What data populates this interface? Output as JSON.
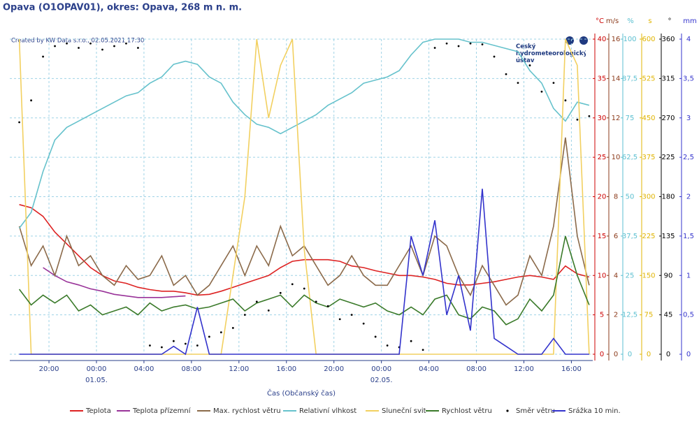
{
  "chart_data": {
    "type": "multi-axis-line",
    "title": "Opava (O1OPAV01), okres: Opava, 268 m n. m.",
    "credit": "Created by KW Data s.r.o., 02.05.2021 17:30",
    "logo_text": "Český hydrometeorologický ústav",
    "xlabel": "Čas (Občanský čas)",
    "xlim": [
      -7.3,
      41.8
    ],
    "xticks": [
      {
        "value": -4,
        "label": "20:00"
      },
      {
        "value": 0,
        "label": "00:00"
      },
      {
        "value": 4,
        "label": "04:00"
      },
      {
        "value": 8,
        "label": "08:00"
      },
      {
        "value": 12,
        "label": "12:00"
      },
      {
        "value": 16,
        "label": "16:00"
      },
      {
        "value": 20,
        "label": "20:00"
      },
      {
        "value": 24,
        "label": "00:00"
      },
      {
        "value": 28,
        "label": "04:00"
      },
      {
        "value": 32,
        "label": "08:00"
      },
      {
        "value": 36,
        "label": "12:00"
      },
      {
        "value": 40,
        "label": "16:00"
      }
    ],
    "xdates": [
      {
        "value": 0,
        "label": "01.05."
      },
      {
        "value": 24,
        "label": "02.05."
      }
    ],
    "grid": true,
    "axes": [
      {
        "unit": "°C",
        "color": "#cc0000",
        "lim": [
          0,
          40
        ],
        "ticks": [
          0,
          5,
          10,
          15,
          20,
          25,
          30,
          35,
          40
        ]
      },
      {
        "unit": "m/s",
        "color": "#8b3a1a",
        "lim": [
          0,
          16
        ],
        "ticks": [
          0,
          2,
          4,
          6,
          8,
          10,
          12,
          14,
          16
        ]
      },
      {
        "unit": "%",
        "color": "#5bbfd0",
        "lim": [
          0,
          100
        ],
        "ticks": [
          0,
          {
            "value": 12.5,
            "label": "12,5"
          },
          25,
          {
            "value": 37.5,
            "label": "37,5"
          },
          50,
          {
            "value": 62.5,
            "label": "62,5"
          },
          75,
          {
            "value": 87.5,
            "label": "87,5"
          },
          100
        ]
      },
      {
        "unit": "s",
        "color": "#e0b400",
        "lim": [
          0,
          600
        ],
        "ticks": [
          0,
          75,
          150,
          225,
          300,
          375,
          450,
          525,
          600
        ]
      },
      {
        "unit": "°",
        "color": "#000000",
        "lim": [
          0,
          360
        ],
        "ticks": [
          0,
          45,
          90,
          135,
          180,
          225,
          270,
          315,
          360
        ]
      },
      {
        "unit": "mm",
        "color": "#3333cc",
        "lim": [
          0,
          4
        ],
        "ticks": [
          0,
          {
            "value": 0.5,
            "label": "0,5"
          },
          1,
          {
            "value": 1.5,
            "label": "1,5"
          },
          2,
          {
            "value": 2.5,
            "label": "2,5"
          },
          3,
          {
            "value": 3.5,
            "label": "3,5"
          },
          4
        ]
      }
    ],
    "x": [
      -6.5,
      -5.5,
      -4.5,
      -3.5,
      -2.5,
      -1.5,
      -0.5,
      0.5,
      1.5,
      2.5,
      3.5,
      4.5,
      5.5,
      6.5,
      7.5,
      8.5,
      9.5,
      10.5,
      11.5,
      12.5,
      13.5,
      14.5,
      15.5,
      16.5,
      17.5,
      18.5,
      19.5,
      20.5,
      21.5,
      22.5,
      23.5,
      24.5,
      25.5,
      26.5,
      27.5,
      28.5,
      29.5,
      30.5,
      31.5,
      32.5,
      33.5,
      34.5,
      35.5,
      36.5,
      37.5,
      38.5,
      39.5,
      40.5,
      41.5
    ],
    "series": [
      {
        "name": "Teplota",
        "color": "#dd2222",
        "axis": 0,
        "mark": "line",
        "values": [
          19,
          18.6,
          17.5,
          15.5,
          14,
          12.5,
          11,
          10,
          9.3,
          9,
          8.5,
          8.2,
          8,
          8,
          7.8,
          7.5,
          7.6,
          8,
          8.5,
          9,
          9.5,
          10,
          11,
          11.8,
          12,
          12,
          12,
          11.8,
          11.2,
          11,
          10.6,
          10.3,
          10,
          10,
          9.8,
          9.5,
          9,
          8.8,
          8.8,
          9,
          9.2,
          9.5,
          9.8,
          10,
          9.8,
          9.5,
          11.2,
          10.2,
          9.8
        ]
      },
      {
        "name": "Teplota přízemní",
        "color": "#993399",
        "axis": 0,
        "mark": "line",
        "values": [
          null,
          null,
          11,
          10,
          9.2,
          8.8,
          8.3,
          8,
          7.6,
          7.4,
          7.2,
          7.2,
          7.2,
          7.3,
          7.4,
          null,
          null,
          null,
          null,
          null,
          null,
          null,
          null,
          null,
          null,
          null,
          null,
          null,
          null,
          null,
          null,
          null,
          null,
          null,
          null,
          null,
          null,
          null,
          null,
          null,
          null,
          null,
          null,
          null,
          null,
          null,
          null,
          null,
          null
        ]
      },
      {
        "name": "Max. rychlost větru",
        "color": "#8b6a4a",
        "axis": 1,
        "mark": "line",
        "values": [
          6.5,
          4.5,
          5.5,
          4,
          6,
          4.5,
          5,
          4,
          3.5,
          4.5,
          3.8,
          4,
          5,
          3.5,
          4,
          3,
          3.5,
          4.5,
          5.5,
          4,
          5.5,
          4.5,
          6.5,
          5,
          5.5,
          4.5,
          3.5,
          4,
          5,
          4,
          3.5,
          3.5,
          4.5,
          5.5,
          4,
          6,
          5.5,
          4,
          3,
          4.5,
          3.5,
          2.5,
          3,
          5,
          4,
          6.5,
          11,
          6,
          3.5
        ]
      },
      {
        "name": "Relativní vlhkost",
        "color": "#66c2cc",
        "axis": 2,
        "mark": "line",
        "values": [
          40,
          45,
          58,
          68,
          72,
          74,
          76,
          78,
          80,
          82,
          83,
          86,
          88,
          92,
          93,
          92,
          88,
          86,
          80,
          76,
          73,
          72,
          70,
          72,
          74,
          76,
          79,
          81,
          83,
          86,
          87,
          88,
          90,
          95,
          99,
          100,
          100,
          100,
          99,
          99,
          98,
          97,
          96,
          90,
          86,
          78,
          74,
          80,
          79
        ]
      },
      {
        "name": "Sluneční svit",
        "color": "#f2d060",
        "axis": 3,
        "mark": "line",
        "values": [
          600,
          0,
          0,
          0,
          0,
          0,
          0,
          0,
          0,
          0,
          0,
          0,
          0,
          0,
          0,
          0,
          0,
          0,
          150,
          300,
          600,
          450,
          550,
          600,
          200,
          0,
          0,
          0,
          0,
          0,
          0,
          0,
          0,
          0,
          0,
          0,
          0,
          0,
          0,
          0,
          0,
          0,
          0,
          0,
          0,
          0,
          600,
          550,
          0
        ]
      },
      {
        "name": "Rychlost větru",
        "color": "#3a7a2a",
        "axis": 1,
        "mark": "line",
        "values": [
          3.3,
          2.5,
          3,
          2.6,
          3,
          2.2,
          2.5,
          2,
          2.2,
          2.4,
          2,
          2.6,
          2.2,
          2.4,
          2.5,
          2.3,
          2.4,
          2.6,
          2.8,
          2.2,
          2.6,
          2.8,
          3,
          2.4,
          3,
          2.6,
          2.4,
          2.8,
          2.6,
          2.4,
          2.6,
          2.2,
          2,
          2.4,
          2,
          2.8,
          3,
          2,
          1.8,
          2.4,
          2.2,
          1.5,
          1.8,
          2.8,
          2.2,
          3,
          6,
          4,
          2.5
        ]
      },
      {
        "name": "Směr větru",
        "color": "#000000",
        "axis": 4,
        "mark": "dots",
        "values": [
          265,
          290,
          340,
          352,
          355,
          350,
          355,
          348,
          352,
          355,
          350,
          10,
          8,
          15,
          12,
          10,
          20,
          25,
          30,
          45,
          60,
          50,
          70,
          80,
          75,
          60,
          55,
          40,
          45,
          35,
          20,
          10,
          8,
          15,
          5,
          350,
          355,
          352,
          355,
          354,
          340,
          320,
          310,
          330,
          300,
          310,
          290,
          268,
          272
        ]
      },
      {
        "name": "Srážka 10 min.",
        "color": "#3333cc",
        "axis": 5,
        "mark": "line",
        "values": [
          0,
          0,
          0,
          0,
          0,
          0,
          0,
          0,
          0,
          0,
          0,
          0,
          0,
          0.1,
          0,
          0.6,
          0,
          0,
          0,
          0,
          0,
          0,
          0,
          0,
          0,
          0,
          0,
          0,
          0,
          0,
          0,
          0,
          0,
          1.5,
          1,
          1.7,
          0.5,
          1,
          0.3,
          2.1,
          0.2,
          0.1,
          0,
          0,
          0,
          0.2,
          0,
          0,
          0
        ]
      }
    ]
  }
}
